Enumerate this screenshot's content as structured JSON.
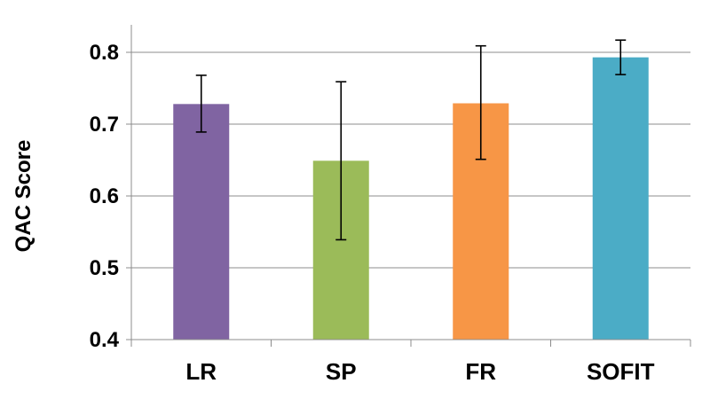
{
  "chart_data": {
    "type": "bar",
    "title": "",
    "xlabel": "",
    "ylabel": "QAC Score",
    "categories": [
      "LR",
      "SP",
      "FR",
      "SOFIT"
    ],
    "values": [
      0.728,
      0.649,
      0.729,
      0.793
    ],
    "error_low": [
      0.689,
      0.539,
      0.651,
      0.769
    ],
    "error_high": [
      0.768,
      0.759,
      0.809,
      0.817
    ],
    "colors": [
      "#8064A2",
      "#9BBB59",
      "#F79646",
      "#4BACC6"
    ],
    "ylim": [
      0.4,
      0.85
    ],
    "yticks": [
      0.4,
      0.5,
      0.6,
      0.7,
      0.8
    ],
    "ytick_labels": [
      "0.4",
      "0.5",
      "0.6",
      "0.7",
      "0.8"
    ],
    "grid": true,
    "legend": "none"
  }
}
